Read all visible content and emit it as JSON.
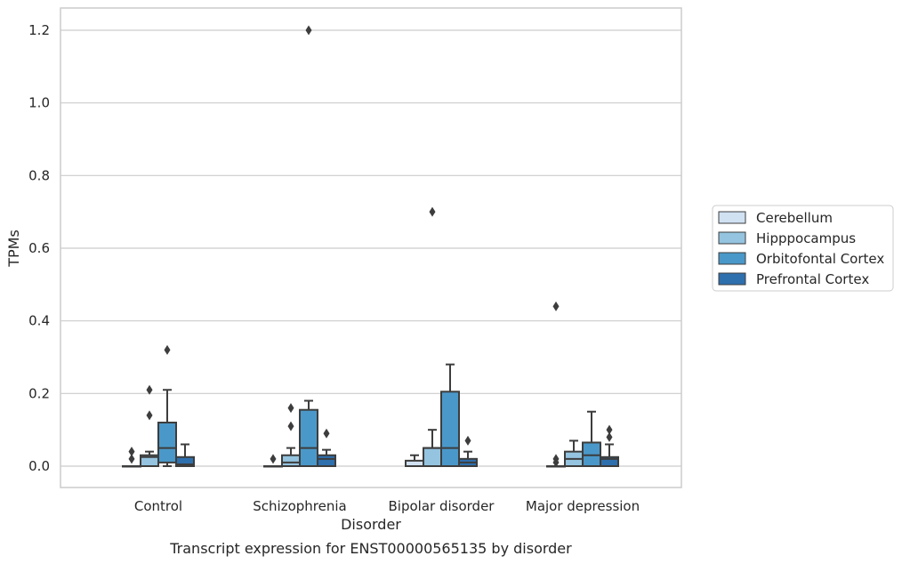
{
  "chart_data": {
    "type": "box",
    "caption": "Transcript expression for ENST00000565135 by disorder",
    "xlabel": "Disorder",
    "ylabel": "TPMs",
    "ylim": [
      -0.06,
      1.26
    ],
    "yticks": [
      "0.0",
      "0.2",
      "0.4",
      "0.6",
      "0.8",
      "1.0",
      "1.2"
    ],
    "categories": [
      "Control",
      "Schizophrenia",
      "Bipolar disorder",
      "Major depression"
    ],
    "grid": "horizontal",
    "legend_position": "right",
    "series": [
      {
        "name": "Cerebellum",
        "color": "#d0e1f2",
        "boxes": [
          {
            "whisker_low": 0,
            "q1": 0,
            "median": 0,
            "q3": 0,
            "whisker_high": 0,
            "outliers": [
              0.02,
              0.04
            ]
          },
          {
            "whisker_low": 0,
            "q1": 0,
            "median": 0,
            "q3": 0,
            "whisker_high": 0,
            "outliers": [
              0.02
            ]
          },
          {
            "whisker_low": 0,
            "q1": 0,
            "median": 0,
            "q3": 0.015,
            "whisker_high": 0.03,
            "outliers": []
          },
          {
            "whisker_low": 0,
            "q1": 0,
            "median": 0,
            "q3": 0,
            "whisker_high": 0,
            "outliers": [
              0.01,
              0.02,
              0.44
            ]
          }
        ]
      },
      {
        "name": "Hipppocampus",
        "color": "#94c4df",
        "boxes": [
          {
            "whisker_low": 0,
            "q1": 0,
            "median": 0.025,
            "q3": 0.03,
            "whisker_high": 0.04,
            "outliers": [
              0.14,
              0.21
            ]
          },
          {
            "whisker_low": 0,
            "q1": 0,
            "median": 0.01,
            "q3": 0.03,
            "whisker_high": 0.05,
            "outliers": [
              0.11,
              0.16
            ]
          },
          {
            "whisker_low": 0,
            "q1": 0,
            "median": 0.05,
            "q3": 0.05,
            "whisker_high": 0.1,
            "outliers": [
              0.7
            ]
          },
          {
            "whisker_low": 0,
            "q1": 0,
            "median": 0.02,
            "q3": 0.04,
            "whisker_high": 0.07,
            "outliers": []
          }
        ]
      },
      {
        "name": "Orbitofontal Cortex",
        "color": "#4a98c9",
        "boxes": [
          {
            "whisker_low": 0,
            "q1": 0.01,
            "median": 0.05,
            "q3": 0.12,
            "whisker_high": 0.21,
            "outliers": [
              0.32
            ]
          },
          {
            "whisker_low": 0,
            "q1": 0,
            "median": 0.05,
            "q3": 0.155,
            "whisker_high": 0.18,
            "outliers": [
              1.2
            ]
          },
          {
            "whisker_low": 0,
            "q1": 0,
            "median": 0.05,
            "q3": 0.205,
            "whisker_high": 0.28,
            "outliers": []
          },
          {
            "whisker_low": 0,
            "q1": 0,
            "median": 0.03,
            "q3": 0.065,
            "whisker_high": 0.15,
            "outliers": []
          }
        ]
      },
      {
        "name": "Prefrontal Cortex",
        "color": "#2e6fae",
        "boxes": [
          {
            "whisker_low": 0,
            "q1": 0,
            "median": 0.005,
            "q3": 0.025,
            "whisker_high": 0.06,
            "outliers": []
          },
          {
            "whisker_low": 0,
            "q1": 0,
            "median": 0.02,
            "q3": 0.03,
            "whisker_high": 0.045,
            "outliers": [
              0.09
            ]
          },
          {
            "whisker_low": 0,
            "q1": 0,
            "median": 0.01,
            "q3": 0.02,
            "whisker_high": 0.04,
            "outliers": [
              0.07
            ]
          },
          {
            "whisker_low": 0,
            "q1": 0,
            "median": 0.02,
            "q3": 0.025,
            "whisker_high": 0.06,
            "outliers": [
              0.08,
              0.1
            ]
          }
        ]
      }
    ]
  }
}
